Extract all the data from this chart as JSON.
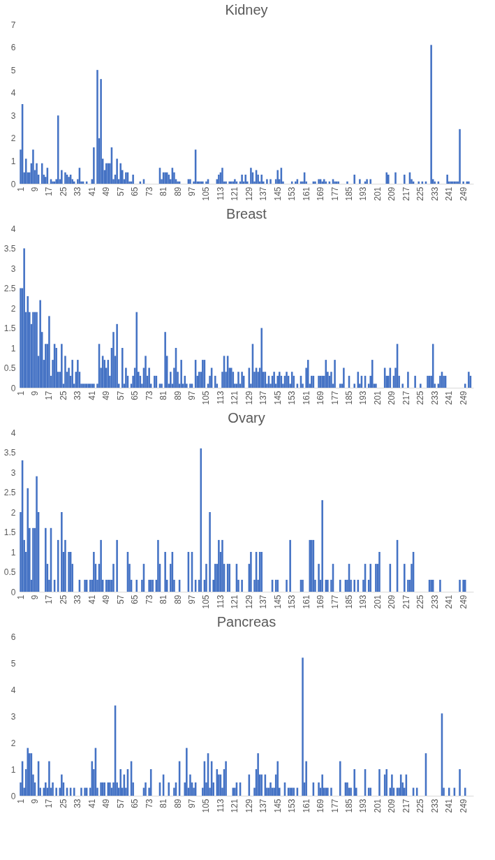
{
  "chart_data": [
    {
      "type": "bar",
      "title": "Kidney",
      "ylim": [
        0,
        7
      ],
      "yticks": [
        0,
        1,
        2,
        3,
        4,
        5,
        6,
        7
      ],
      "grid": false,
      "categories": [
        "1",
        null,
        null,
        null,
        null,
        null,
        null,
        null,
        "9",
        null,
        null,
        null,
        null,
        null,
        null,
        null,
        "17",
        null,
        null,
        null,
        null,
        null,
        null,
        null,
        "25",
        null,
        null,
        null,
        null,
        null,
        null,
        null,
        "33",
        null,
        null,
        null,
        null,
        null,
        null,
        null,
        "41",
        null,
        null,
        null,
        null,
        null,
        null,
        null,
        "49",
        null,
        null,
        null,
        null,
        null,
        null,
        null,
        "57",
        null,
        null,
        null,
        null,
        null,
        null,
        null,
        "65",
        null,
        null,
        null,
        null,
        null,
        null,
        null,
        "73",
        null,
        null,
        null,
        null,
        null,
        null,
        null,
        "81",
        null,
        null,
        null,
        null,
        null,
        null,
        null,
        "89",
        null,
        null,
        null,
        null,
        null,
        null,
        null,
        "97",
        null,
        null,
        null,
        null,
        null,
        null,
        null,
        "105",
        null,
        null,
        null,
        null,
        null,
        null,
        null,
        "113",
        null,
        null,
        null,
        null,
        null,
        null,
        null,
        "121",
        null,
        null,
        null,
        null,
        null,
        null,
        null,
        "129",
        null,
        null,
        null,
        null,
        null,
        null,
        null,
        "137",
        null,
        null,
        null,
        null,
        null,
        null,
        null,
        "145",
        null,
        null,
        null,
        null,
        null,
        null,
        null,
        "153",
        null,
        null,
        null,
        null,
        null,
        null,
        null,
        "161",
        null,
        null,
        null,
        null,
        null,
        null,
        null,
        "169",
        null,
        null,
        null,
        null,
        null,
        null,
        null,
        "177",
        null,
        null,
        null,
        null,
        null,
        null,
        null,
        "185",
        null,
        null,
        null,
        null,
        null,
        null,
        null,
        "193",
        null,
        null,
        null,
        null,
        null,
        null,
        null,
        "201",
        null,
        null,
        null,
        null,
        null,
        null,
        null,
        "209",
        null,
        null,
        null,
        null,
        null,
        null,
        null,
        "217",
        null,
        null,
        null,
        null,
        null,
        null,
        null,
        "225",
        null,
        null,
        null,
        null,
        null,
        null,
        null,
        "233",
        null,
        null,
        null,
        null,
        null,
        null,
        null,
        "241",
        null,
        null,
        null,
        null,
        null,
        null,
        null,
        "249",
        null,
        null,
        null,
        null,
        null
      ],
      "series": [
        {
          "color": "#4472c4",
          "values": [
            1.5,
            3.5,
            0.5,
            1.1,
            0.5,
            0.5,
            0.9,
            1.5,
            0.6,
            0.9,
            0.4,
            0,
            0.9,
            0.4,
            0.3,
            0.7,
            0,
            0.2,
            0.1,
            0.1,
            0.2,
            3.0,
            0.2,
            0.6,
            0,
            0.5,
            0.4,
            0.3,
            0.4,
            0.2,
            0.1,
            0,
            0.2,
            0.7,
            0.1,
            0.1,
            0,
            0.1,
            0,
            0,
            0.2,
            1.6,
            0,
            5.0,
            2.0,
            4.6,
            1.1,
            0.6,
            0.9,
            0.9,
            0.9,
            1.6,
            0.2,
            0.4,
            1.1,
            0.2,
            0.9,
            0.6,
            0.2,
            0.5,
            0.5,
            0.1,
            0.1,
            0.4,
            0,
            0,
            0,
            0.1,
            0,
            0.2,
            0,
            0,
            0,
            0,
            0,
            0,
            0,
            0,
            0.7,
            0.2,
            0.5,
            0.5,
            0.5,
            0.4,
            0.2,
            0.7,
            0.5,
            0.2,
            0.1,
            0.1,
            0,
            0,
            0,
            0,
            0.2,
            0.2,
            0,
            0.1,
            1.5,
            0.1,
            0.1,
            0.1,
            0.1,
            0,
            0.1,
            0.2,
            0,
            0,
            0,
            0,
            0.2,
            0.4,
            0.5,
            0.7,
            0.1,
            0.1,
            0,
            0.1,
            0.1,
            0.1,
            0.2,
            0.1,
            0,
            0.1,
            0.4,
            0.1,
            0.4,
            0.1,
            0,
            0.7,
            0.5,
            0.1,
            0.6,
            0.4,
            0.1,
            0.4,
            0.1,
            0,
            0.2,
            0,
            0.2,
            0,
            0,
            0.2,
            0.6,
            0.2,
            0.7,
            0.1,
            0,
            0,
            0,
            0,
            0.1,
            0,
            0.1,
            0.2,
            0,
            0.1,
            0.1,
            0.5,
            0.1,
            0,
            0,
            0,
            0.1,
            0.1,
            0,
            0.2,
            0.2,
            0.1,
            0.2,
            0.1,
            0,
            0.1,
            0,
            0.2,
            0.1,
            0.1,
            0.1,
            0,
            0,
            0,
            0,
            0.1,
            0,
            0,
            0,
            0.4,
            0,
            0,
            0.2,
            0,
            0,
            0.1,
            0.2,
            0,
            0.2,
            0,
            0,
            0,
            0,
            0,
            0,
            0,
            0,
            0.5,
            0.4,
            0,
            0,
            0,
            0.5,
            0,
            0,
            0,
            0,
            0.4,
            0,
            0,
            0.5,
            0.2,
            0.1,
            0,
            0,
            0.1,
            0,
            0.1,
            0,
            0.1,
            0,
            0,
            6.1,
            0.2,
            0.1,
            0,
            0.1,
            0,
            0,
            0,
            0,
            0.4,
            0.1,
            0.1,
            0.1,
            0.1,
            0.1,
            0.1,
            2.4,
            0,
            0.1,
            0,
            0.1,
            0.1,
            0,
            0
          ]
        }
      ]
    },
    {
      "type": "bar",
      "title": "Breast",
      "ylim": [
        0,
        4
      ],
      "yticks": [
        0,
        0.5,
        1,
        1.5,
        2,
        2.5,
        3,
        3.5,
        4
      ],
      "grid": false,
      "categories": [
        "1",
        null,
        null,
        null,
        null,
        null,
        null,
        null,
        "9",
        null,
        null,
        null,
        null,
        null,
        null,
        null,
        "17",
        null,
        null,
        null,
        null,
        null,
        null,
        null,
        "25",
        null,
        null,
        null,
        null,
        null,
        null,
        null,
        "33",
        null,
        null,
        null,
        null,
        null,
        null,
        null,
        "41",
        null,
        null,
        null,
        null,
        null,
        null,
        null,
        "49",
        null,
        null,
        null,
        null,
        null,
        null,
        null,
        "57",
        null,
        null,
        null,
        null,
        null,
        null,
        null,
        "65",
        null,
        null,
        null,
        null,
        null,
        null,
        null,
        "73",
        null,
        null,
        null,
        null,
        null,
        null,
        null,
        "81",
        null,
        null,
        null,
        null,
        null,
        null,
        null,
        "89",
        null,
        null,
        null,
        null,
        null,
        null,
        null,
        "97",
        null,
        null,
        null,
        null,
        null,
        null,
        null,
        "105",
        null,
        null,
        null,
        null,
        null,
        null,
        null,
        "113",
        null,
        null,
        null,
        null,
        null,
        null,
        null,
        "121",
        null,
        null,
        null,
        null,
        null,
        null,
        null,
        "129",
        null,
        null,
        null,
        null,
        null,
        null,
        null,
        "137",
        null,
        null,
        null,
        null,
        null,
        null,
        null,
        "145",
        null,
        null,
        null,
        null,
        null,
        null,
        null,
        "153",
        null,
        null,
        null,
        null,
        null,
        null,
        null,
        "161",
        null,
        null,
        null,
        null,
        null,
        null,
        null,
        "169",
        null,
        null,
        null,
        null,
        null,
        null,
        null,
        "177",
        null,
        null,
        null,
        null,
        null,
        null,
        null,
        "185",
        null,
        null,
        null,
        null,
        null,
        null,
        null,
        "193",
        null,
        null,
        null,
        null,
        null,
        null,
        null,
        "201",
        null,
        null,
        null,
        null,
        null,
        null,
        null,
        "209",
        null,
        null,
        null,
        null,
        null,
        null,
        null,
        "217",
        null,
        null,
        null,
        null,
        null,
        null,
        null,
        "225",
        null,
        null,
        null,
        null,
        null,
        null,
        null,
        "233",
        null,
        null,
        null,
        null,
        null,
        null,
        null,
        "241",
        null,
        null,
        null,
        null,
        null,
        null,
        null,
        "249",
        null,
        null,
        null,
        null,
        null
      ],
      "series": [
        {
          "color": "#4472c4",
          "values": [
            2.5,
            2.5,
            3.5,
            1.9,
            2.3,
            1.9,
            1.6,
            1.9,
            1.9,
            1.9,
            0.8,
            2.2,
            1.4,
            0.7,
            1.1,
            1.1,
            1.8,
            0.3,
            0.7,
            1.1,
            1.0,
            0.4,
            0.4,
            1.1,
            0.1,
            0.8,
            0.4,
            0.5,
            0.3,
            0.7,
            0.1,
            0.4,
            0.7,
            0.4,
            0.1,
            0.1,
            0.1,
            0.1,
            0.1,
            0.1,
            0.1,
            0.1,
            0,
            0.1,
            1.1,
            0.5,
            0.8,
            0.7,
            0.5,
            0.7,
            0.3,
            1.0,
            1.4,
            0.8,
            1.6,
            0.1,
            0,
            1.0,
            0.1,
            0.5,
            0.3,
            0,
            0.1,
            0.3,
            0.5,
            1.9,
            0.4,
            0.3,
            0.1,
            0.5,
            0.8,
            0.3,
            0.5,
            0.1,
            0,
            0.3,
            0.3,
            0,
            0.1,
            0.1,
            0,
            1.4,
            0.8,
            0.1,
            0.4,
            0.1,
            0.5,
            1.0,
            0.4,
            0.1,
            0.7,
            0.1,
            0.3,
            0.1,
            0,
            0.1,
            0.1,
            0,
            0.7,
            0.3,
            0.4,
            0.4,
            0.7,
            0.7,
            0,
            0.1,
            0.3,
            0.5,
            0,
            0.3,
            0.1,
            0,
            0,
            0.4,
            0.8,
            0.4,
            0.8,
            0.5,
            0.5,
            0.4,
            0.1,
            0.1,
            0.4,
            0.1,
            0.4,
            0.3,
            0,
            0,
            0.5,
            0.1,
            1.1,
            0.4,
            0.5,
            0.4,
            0.5,
            1.5,
            0.4,
            0.4,
            0.1,
            0.3,
            0.1,
            0.3,
            0.4,
            0.1,
            0.3,
            0.4,
            0.3,
            0.1,
            0.3,
            0.4,
            0.3,
            0.1,
            0.4,
            0.3,
            0,
            0.1,
            0,
            0.3,
            0.1,
            0,
            0.5,
            0.7,
            0.1,
            0.3,
            0.3,
            0,
            0,
            0.3,
            0.3,
            0.3,
            0.3,
            0.7,
            0.4,
            0.3,
            0.4,
            0.1,
            0.7,
            0,
            0,
            0.1,
            0.1,
            0.5,
            0,
            0,
            0.3,
            0,
            0,
            0.1,
            0,
            0.4,
            0.1,
            0.3,
            0,
            0.3,
            0,
            0.1,
            0.3,
            0.7,
            0.1,
            0.1,
            0,
            0,
            0,
            0,
            0.5,
            0.3,
            0.3,
            0.5,
            0,
            0.3,
            0.5,
            1.1,
            0.3,
            0,
            0.1,
            0,
            0,
            0.4,
            0,
            0,
            0,
            0.3,
            0,
            0,
            0.1,
            0,
            0,
            0,
            0.3,
            0.3,
            0.3,
            1.1,
            0.1,
            0,
            0.1,
            0.3,
            0.4,
            0.3,
            0.3,
            0,
            0,
            0,
            0,
            0,
            0,
            0,
            0,
            0,
            0,
            0.1,
            0,
            0.4,
            0.3,
            0
          ]
        }
      ]
    },
    {
      "type": "bar",
      "title": "Ovary",
      "ylim": [
        0,
        4
      ],
      "yticks": [
        0,
        0.5,
        1,
        1.5,
        2,
        2.5,
        3,
        3.5,
        4
      ],
      "grid": false,
      "categories": [
        "1",
        null,
        null,
        null,
        null,
        null,
        null,
        null,
        "9",
        null,
        null,
        null,
        null,
        null,
        null,
        null,
        "17",
        null,
        null,
        null,
        null,
        null,
        null,
        null,
        "25",
        null,
        null,
        null,
        null,
        null,
        null,
        null,
        "33",
        null,
        null,
        null,
        null,
        null,
        null,
        null,
        "41",
        null,
        null,
        null,
        null,
        null,
        null,
        null,
        "49",
        null,
        null,
        null,
        null,
        null,
        null,
        null,
        "57",
        null,
        null,
        null,
        null,
        null,
        null,
        null,
        "65",
        null,
        null,
        null,
        null,
        null,
        null,
        null,
        "73",
        null,
        null,
        null,
        null,
        null,
        null,
        null,
        "81",
        null,
        null,
        null,
        null,
        null,
        null,
        null,
        "89",
        null,
        null,
        null,
        null,
        null,
        null,
        null,
        "97",
        null,
        null,
        null,
        null,
        null,
        null,
        null,
        "105",
        null,
        null,
        null,
        null,
        null,
        null,
        null,
        "113",
        null,
        null,
        null,
        null,
        null,
        null,
        null,
        "121",
        null,
        null,
        null,
        null,
        null,
        null,
        null,
        "129",
        null,
        null,
        null,
        null,
        null,
        null,
        null,
        "137",
        null,
        null,
        null,
        null,
        null,
        null,
        null,
        "145",
        null,
        null,
        null,
        null,
        null,
        null,
        null,
        "153",
        null,
        null,
        null,
        null,
        null,
        null,
        null,
        "161",
        null,
        null,
        null,
        null,
        null,
        null,
        null,
        "169",
        null,
        null,
        null,
        null,
        null,
        null,
        null,
        "177",
        null,
        null,
        null,
        null,
        null,
        null,
        null,
        "185",
        null,
        null,
        null,
        null,
        null,
        null,
        null,
        "193",
        null,
        null,
        null,
        null,
        null,
        null,
        null,
        "201",
        null,
        null,
        null,
        null,
        null,
        null,
        null,
        "209",
        null,
        null,
        null,
        null,
        null,
        null,
        null,
        "217",
        null,
        null,
        null,
        null,
        null,
        null,
        null,
        "225",
        null,
        null,
        null,
        null,
        null,
        null,
        null,
        "233",
        null,
        null,
        null,
        null,
        null,
        null,
        null,
        "241",
        null,
        null,
        null,
        null,
        null,
        null,
        null,
        "249",
        null,
        null,
        null,
        null,
        null
      ],
      "series": [
        {
          "color": "#4472c4",
          "values": [
            2.0,
            3.3,
            1.3,
            1.0,
            2.6,
            1.6,
            0.3,
            1.6,
            1.6,
            2.9,
            2.0,
            0,
            0,
            0,
            1.6,
            0.7,
            0.3,
            1.6,
            0,
            0.3,
            0,
            1.3,
            0,
            2.0,
            1.0,
            1.3,
            0,
            1.0,
            1.0,
            0.7,
            0,
            0,
            0,
            0.3,
            0,
            0,
            0.3,
            0.3,
            0,
            0.3,
            0.3,
            1.0,
            0.7,
            0.3,
            0.7,
            1.3,
            0.3,
            0,
            0.3,
            0.3,
            0.3,
            0.3,
            0.7,
            0,
            1.3,
            0,
            0,
            0,
            0,
            0,
            1.0,
            0.7,
            0.3,
            0,
            0,
            0.3,
            0,
            0,
            0.3,
            0.7,
            0,
            0,
            0.3,
            0.3,
            0.3,
            0,
            0.3,
            1.3,
            0.7,
            0,
            0,
            1.0,
            0.3,
            0,
            0.7,
            1.0,
            0.3,
            0,
            0,
            0.3,
            0,
            0,
            0,
            0,
            1.0,
            0,
            1.0,
            0,
            0.3,
            0,
            0.3,
            3.6,
            0,
            0.3,
            0.7,
            0,
            2.0,
            0,
            0.3,
            0.7,
            0.7,
            1.3,
            1.0,
            1.3,
            0.7,
            0,
            0.7,
            0.7,
            0,
            0,
            0,
            0.7,
            0.3,
            0,
            0.3,
            0,
            0,
            0,
            0.7,
            1.0,
            0,
            0.3,
            1.0,
            0.3,
            1.0,
            1.0,
            0,
            0,
            0,
            0,
            0,
            0.3,
            0,
            0.3,
            0.3,
            0,
            0,
            0,
            0,
            0.3,
            0,
            1.3,
            0,
            0,
            0,
            0,
            0,
            0.3,
            0.3,
            0,
            0,
            0,
            1.3,
            1.3,
            1.3,
            0.3,
            0,
            0.7,
            0.3,
            2.3,
            0,
            0.3,
            0.3,
            0,
            0.3,
            0.7,
            0,
            0,
            0,
            0.3,
            0,
            0,
            0.3,
            0.3,
            0.7,
            0.3,
            0,
            0.3,
            0,
            0.3,
            0,
            0,
            0.3,
            0.7,
            0,
            0.3,
            0.7,
            0,
            0,
            0.7,
            0.7,
            1.0,
            0,
            0,
            0,
            0,
            0,
            0.7,
            0,
            0,
            0,
            1.3,
            0,
            0,
            0,
            0.7,
            0,
            0.3,
            0.3,
            0.7,
            1.0,
            0,
            0,
            0,
            0,
            0,
            0,
            0,
            0,
            0.3,
            0.3,
            0.3,
            0,
            0,
            0,
            0.3,
            0,
            0,
            0,
            0,
            0,
            0,
            0,
            0,
            0,
            0,
            0.3,
            0,
            0.3,
            0.3,
            0,
            0,
            0,
            0
          ]
        }
      ]
    },
    {
      "type": "bar",
      "title": "Pancreas",
      "ylim": [
        0,
        6
      ],
      "yticks": [
        0,
        1,
        2,
        3,
        4,
        5,
        6
      ],
      "grid": false,
      "categories": [
        "1",
        null,
        null,
        null,
        null,
        null,
        null,
        null,
        "9",
        null,
        null,
        null,
        null,
        null,
        null,
        null,
        "17",
        null,
        null,
        null,
        null,
        null,
        null,
        null,
        "25",
        null,
        null,
        null,
        null,
        null,
        null,
        null,
        "33",
        null,
        null,
        null,
        null,
        null,
        null,
        null,
        "41",
        null,
        null,
        null,
        null,
        null,
        null,
        null,
        "49",
        null,
        null,
        null,
        null,
        null,
        null,
        null,
        "57",
        null,
        null,
        null,
        null,
        null,
        null,
        null,
        "65",
        null,
        null,
        null,
        null,
        null,
        null,
        null,
        "73",
        null,
        null,
        null,
        null,
        null,
        null,
        null,
        "81",
        null,
        null,
        null,
        null,
        null,
        null,
        null,
        "89",
        null,
        null,
        null,
        null,
        null,
        null,
        null,
        "97",
        null,
        null,
        null,
        null,
        null,
        null,
        null,
        "105",
        null,
        null,
        null,
        null,
        null,
        null,
        null,
        "113",
        null,
        null,
        null,
        null,
        null,
        null,
        null,
        "121",
        null,
        null,
        null,
        null,
        null,
        null,
        null,
        "129",
        null,
        null,
        null,
        null,
        null,
        null,
        null,
        "137",
        null,
        null,
        null,
        null,
        null,
        null,
        null,
        "145",
        null,
        null,
        null,
        null,
        null,
        null,
        null,
        "153",
        null,
        null,
        null,
        null,
        null,
        null,
        null,
        "161",
        null,
        null,
        null,
        null,
        null,
        null,
        null,
        "169",
        null,
        null,
        null,
        null,
        null,
        null,
        null,
        "177",
        null,
        null,
        null,
        null,
        null,
        null,
        null,
        "185",
        null,
        null,
        null,
        null,
        null,
        null,
        null,
        "193",
        null,
        null,
        null,
        null,
        null,
        null,
        null,
        "201",
        null,
        null,
        null,
        null,
        null,
        null,
        null,
        "209",
        null,
        null,
        null,
        null,
        null,
        null,
        null,
        "217",
        null,
        null,
        null,
        null,
        null,
        null,
        null,
        "225",
        null,
        null,
        null,
        null,
        null,
        null,
        null,
        "233",
        null,
        null,
        null,
        null,
        null,
        null,
        null,
        "241",
        null,
        null,
        null,
        null,
        null,
        null,
        null,
        "249",
        null,
        null,
        null,
        null,
        null
      ],
      "series": [
        {
          "color": "#4472c4",
          "values": [
            0.5,
            1.3,
            0.3,
            1.0,
            1.8,
            1.6,
            1.6,
            0.8,
            0.5,
            0,
            1.3,
            0.3,
            0,
            0.3,
            0.5,
            0.3,
            1.3,
            0.3,
            0.5,
            0,
            0.3,
            0,
            0.3,
            0.8,
            0.5,
            0,
            0.3,
            0,
            0.3,
            0,
            0.3,
            0,
            0,
            0,
            0.3,
            0,
            0.3,
            0.3,
            0,
            0.3,
            1.3,
            1.0,
            1.8,
            0.3,
            0,
            0.5,
            0.5,
            0.5,
            0,
            0.5,
            0.5,
            0.3,
            0.5,
            3.4,
            0.5,
            0.3,
            1.0,
            0.3,
            0.8,
            0.3,
            1.0,
            0,
            1.3,
            0.5,
            0,
            0,
            0,
            0,
            0,
            0.3,
            0.5,
            0,
            0.3,
            1.0,
            0,
            0,
            0,
            0,
            0.5,
            0,
            0.8,
            0,
            0,
            0.5,
            0,
            0,
            0.3,
            0.5,
            0,
            1.3,
            0,
            0,
            0.5,
            1.8,
            0.3,
            0.8,
            0.5,
            0.3,
            0.5,
            0,
            0,
            0,
            0.3,
            1.3,
            0.5,
            1.6,
            0.3,
            1.3,
            0.5,
            0,
            1.0,
            0.8,
            0.8,
            0.3,
            1.0,
            1.3,
            0,
            0,
            0,
            0.3,
            0.3,
            0.5,
            0,
            0.5,
            0,
            0,
            0,
            0,
            0.8,
            0,
            0,
            0.3,
            1.0,
            1.6,
            0.8,
            0.8,
            0,
            0.8,
            0.3,
            0.3,
            0.5,
            0.3,
            0.3,
            0.8,
            1.3,
            0.3,
            0,
            0,
            0.5,
            0,
            0.3,
            0.3,
            0.3,
            0.3,
            0,
            0.3,
            0,
            0,
            5.2,
            0.5,
            1.3,
            0,
            0,
            0,
            0.5,
            0,
            0,
            0.5,
            0.3,
            0.8,
            0.3,
            0.3,
            0.3,
            0,
            0.3,
            0,
            0,
            0,
            0,
            1.3,
            0,
            0,
            0.5,
            0.5,
            0.3,
            0.3,
            0,
            1.0,
            0.3,
            0,
            0,
            0,
            0,
            1.0,
            0,
            0.3,
            0.3,
            0,
            0,
            0,
            0,
            1.0,
            0,
            0,
            0.8,
            1.0,
            0,
            0.3,
            0.8,
            0.3,
            0,
            0.3,
            0.3,
            0.8,
            0.5,
            0.3,
            0.8,
            0,
            0,
            0,
            0.3,
            0,
            0.3,
            0,
            0,
            0,
            0,
            1.6,
            0,
            0,
            0,
            0,
            0,
            0,
            0,
            0,
            3.1,
            0.3,
            0,
            0,
            0.3,
            0,
            0,
            0.3,
            0,
            0,
            1.0,
            0,
            0,
            0.3,
            0,
            0,
            0,
            0
          ]
        }
      ]
    }
  ]
}
